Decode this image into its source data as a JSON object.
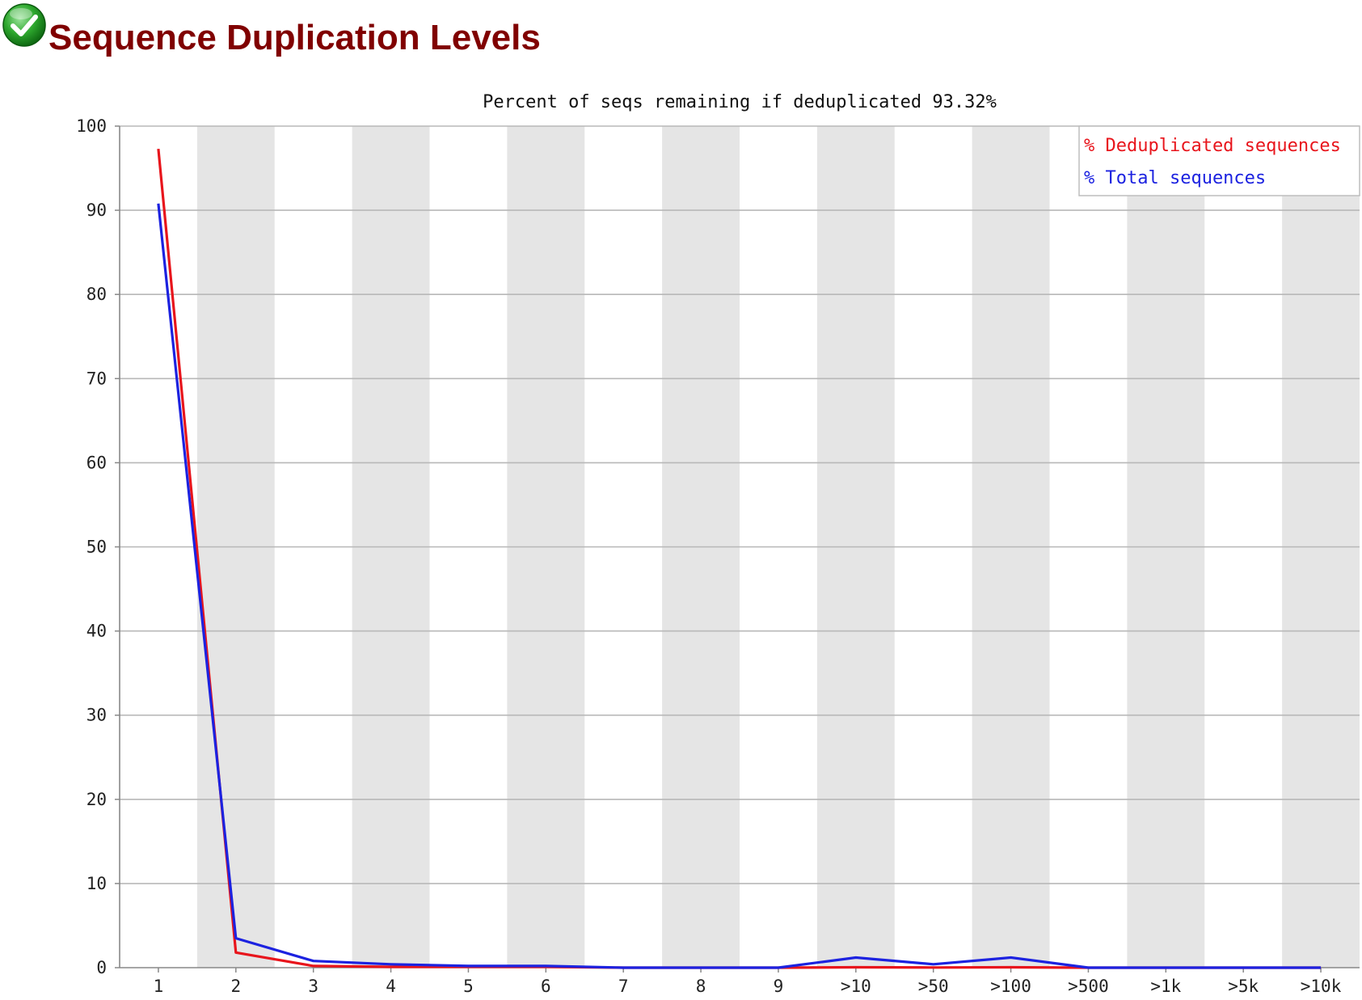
{
  "header": {
    "title": "Sequence Duplication Levels",
    "status_icon": "check-icon",
    "status_color": "#2ea82e"
  },
  "chart_data": {
    "type": "line",
    "title": "Percent of seqs remaining if deduplicated 93.32%",
    "xlabel": "",
    "ylabel": "",
    "categories": [
      "1",
      "2",
      "3",
      "4",
      "5",
      "6",
      "7",
      "8",
      "9",
      ">10",
      ">50",
      ">100",
      ">500",
      ">1k",
      ">5k",
      ">10k"
    ],
    "ylim": [
      0,
      100
    ],
    "yticks": [
      "0",
      "10",
      "20",
      "30",
      "40",
      "50",
      "60",
      "70",
      "80",
      "90",
      "100"
    ],
    "grid": true,
    "alternating_column_bands": true,
    "legend_position": "top-right",
    "series": [
      {
        "name": "% Deduplicated sequences",
        "color": "#e8151c",
        "values": [
          97.3,
          1.8,
          0.2,
          0.1,
          0.1,
          0.1,
          0.0,
          0.0,
          0.0,
          0.05,
          0.02,
          0.05,
          0.0,
          0.0,
          0.0,
          0.0
        ]
      },
      {
        "name": "% Total sequences",
        "color": "#1c22e0",
        "values": [
          90.8,
          3.5,
          0.8,
          0.4,
          0.2,
          0.2,
          0.0,
          0.0,
          0.0,
          1.2,
          0.4,
          1.2,
          0.0,
          0.0,
          0.0,
          0.0
        ]
      }
    ]
  }
}
